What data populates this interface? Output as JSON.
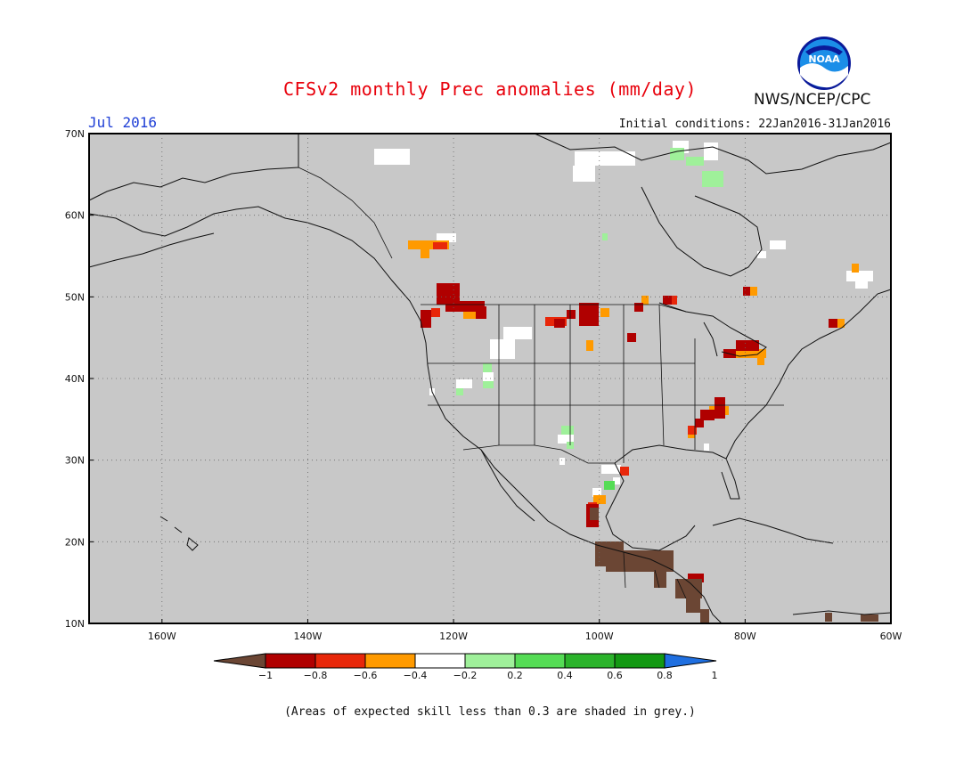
{
  "header": {
    "title": "CFSv2 monthly Prec anomalies (mm/day)",
    "agency": "NWS/NCEP/CPC",
    "logo_text": "NOAA",
    "target_month": "Jul 2016",
    "initial_conditions": "Initial conditions: 22Jan2016-31Jan2016"
  },
  "map": {
    "lon_range": [
      -170,
      -60
    ],
    "lat_range": [
      10,
      70
    ],
    "lat_ticks": [
      {
        "value": 70,
        "label": "70N"
      },
      {
        "value": 60,
        "label": "60N"
      },
      {
        "value": 50,
        "label": "50N"
      },
      {
        "value": 40,
        "label": "40N"
      },
      {
        "value": 30,
        "label": "30N"
      },
      {
        "value": 20,
        "label": "20N"
      },
      {
        "value": 10,
        "label": "10N"
      }
    ],
    "lon_ticks": [
      {
        "value": -160,
        "label": "160W"
      },
      {
        "value": -140,
        "label": "140W"
      },
      {
        "value": -120,
        "label": "120W"
      },
      {
        "value": -100,
        "label": "100W"
      },
      {
        "value": -80,
        "label": "80W"
      },
      {
        "value": -60,
        "label": "60W"
      }
    ],
    "background_color": "#c8c8c8",
    "grid": "dotted"
  },
  "legend": {
    "colors": [
      "#6b4634",
      "#b00000",
      "#e8270a",
      "#ff9a00",
      "#ffffff",
      "#9ff09a",
      "#55dc55",
      "#2bb32b",
      "#139913",
      "#1f6fe0"
    ],
    "labels": [
      "−1",
      "−0.8",
      "−0.6",
      "−0.4",
      "−0.2",
      "0.2",
      "0.4",
      "0.6",
      "0.8",
      "1"
    ]
  },
  "footnote": "(Areas of expected skill less than 0.3 are shaded in grey.)",
  "anomaly_regions": [
    {
      "name": "Pacific NW / BC",
      "lon": -121,
      "lat": 49,
      "value": -0.8,
      "color": "#b00000"
    },
    {
      "name": "Northern Plains",
      "lon": -101,
      "lat": 48,
      "value": -0.8,
      "color": "#b00000"
    },
    {
      "name": "Great Lakes",
      "lon": -80,
      "lat": 43,
      "value": -0.8,
      "color": "#b00000"
    },
    {
      "name": "Southern Appalachians",
      "lon": -84,
      "lat": 35,
      "value": -0.8,
      "color": "#b00000"
    },
    {
      "name": "Northern Mexico",
      "lon": -101,
      "lat": 23,
      "value": -1,
      "color": "#6b4634"
    },
    {
      "name": "Southern Mexico",
      "lon": -95,
      "lat": 17,
      "value": -1,
      "color": "#6b4634"
    },
    {
      "name": "Central America",
      "lon": -87,
      "lat": 14,
      "value": -1,
      "color": "#6b4634"
    },
    {
      "name": "Baffin Island",
      "lon": -83,
      "lat": 67,
      "value": 0.2,
      "color": "#9ff09a"
    }
  ]
}
